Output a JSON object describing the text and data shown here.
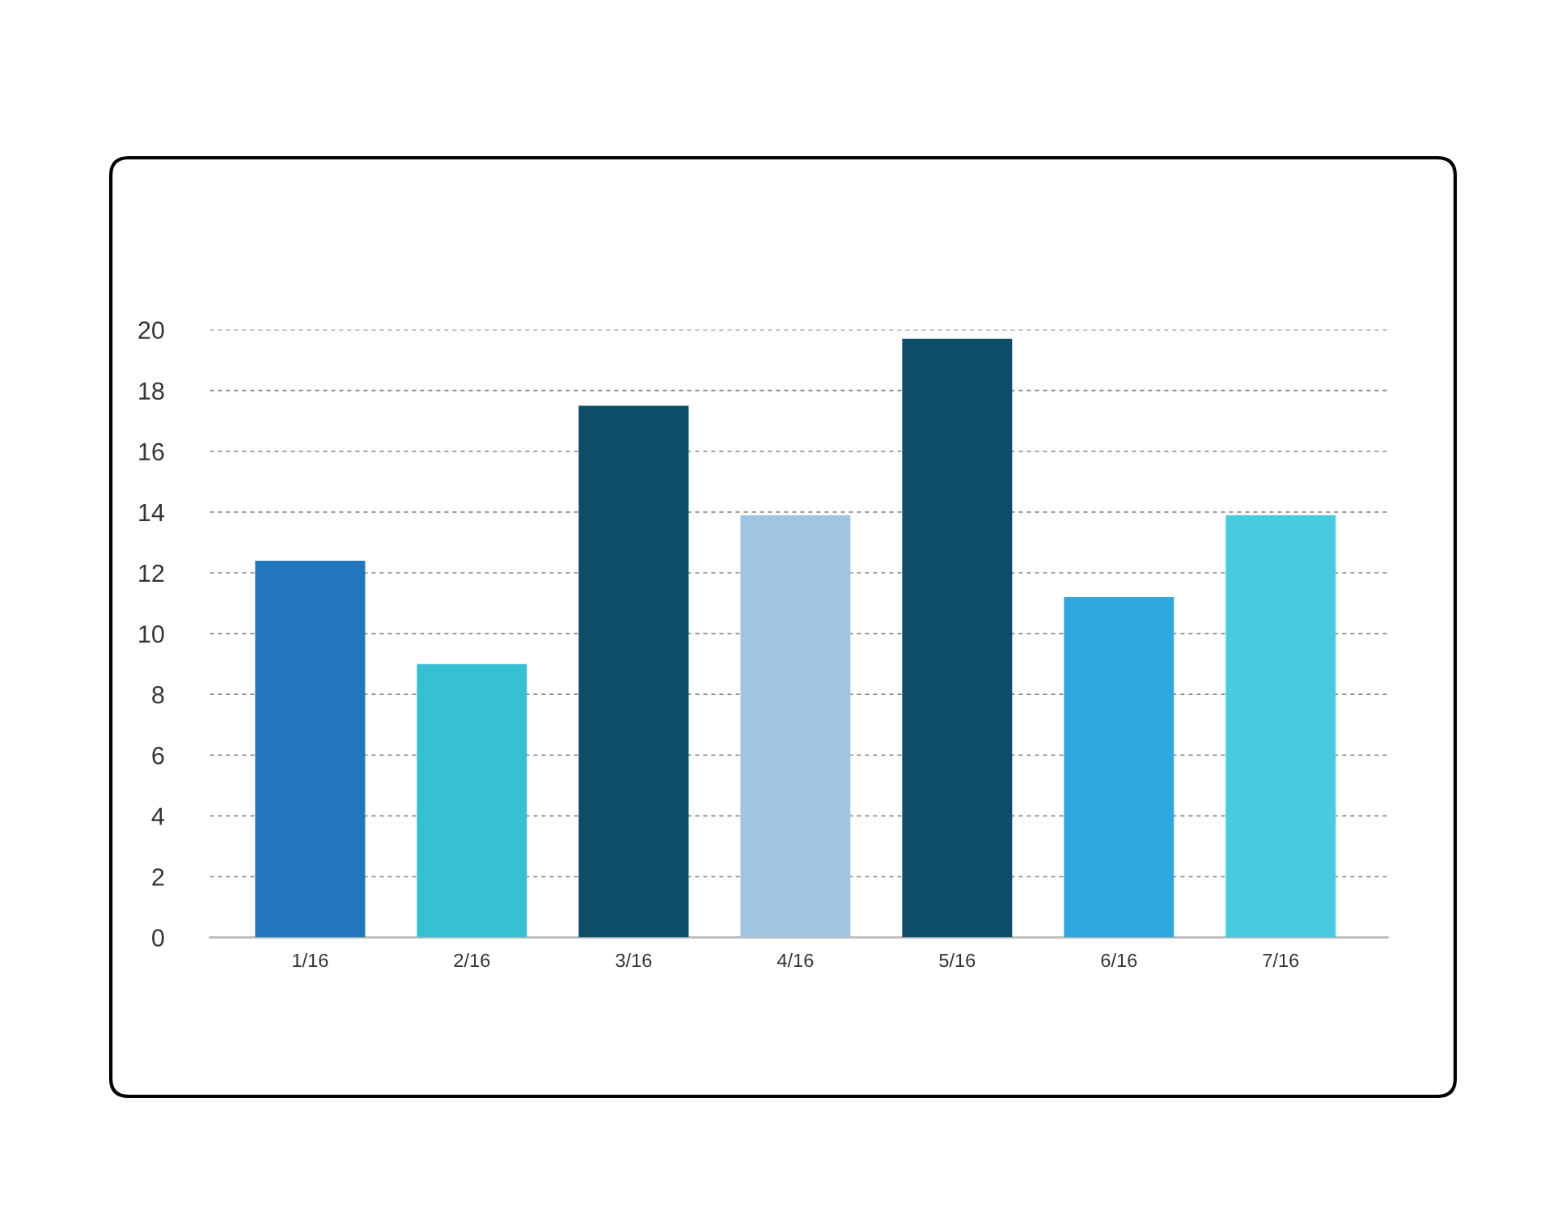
{
  "chart_data": {
    "type": "bar",
    "categories": [
      "1/16",
      "2/16",
      "3/16",
      "4/16",
      "5/16",
      "6/16",
      "7/16"
    ],
    "values": [
      12.4,
      9,
      17.5,
      13.9,
      19.7,
      11.2,
      13.9
    ],
    "colors": [
      "#2176bd",
      "#35c0d4",
      "#0d4d6a",
      "#9fc5e3",
      "#0d4d6a",
      "#30a8df",
      "#48cadf"
    ],
    "ylim": [
      0,
      20
    ],
    "yticks": [
      0,
      2,
      4,
      6,
      8,
      10,
      12,
      14,
      16,
      18,
      20
    ],
    "grid": "y"
  }
}
